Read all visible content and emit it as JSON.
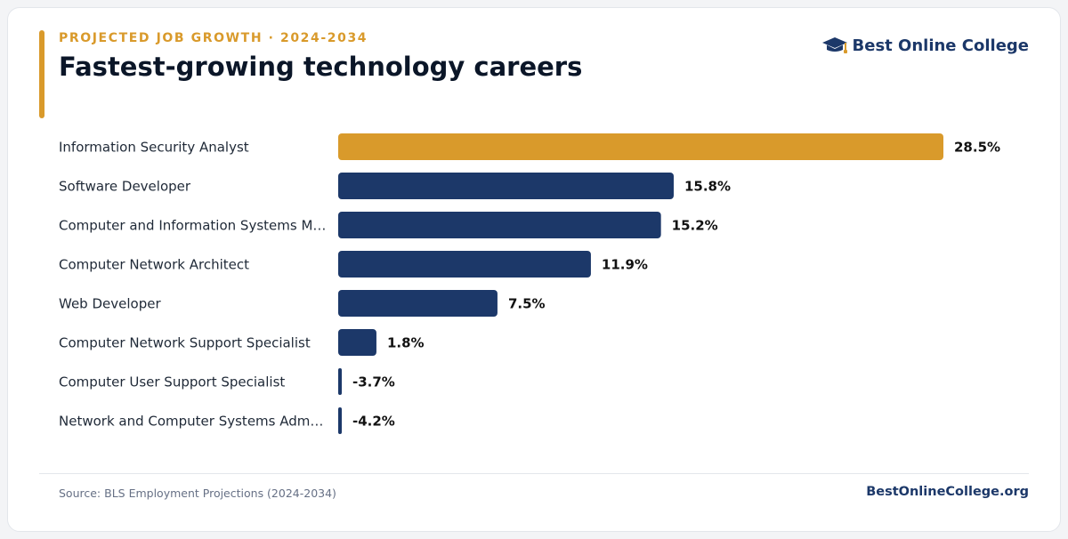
{
  "header": {
    "kicker": "PROJECTED JOB GROWTH · 2024-2034",
    "title": "Fastest-growing technology careers"
  },
  "brand": {
    "name": "Best Online College",
    "icon": "graduation-cap-icon"
  },
  "footer": {
    "source": "Source: BLS Employment Projections (2024-2034)",
    "site": "BestOnlineCollege.org"
  },
  "colors": {
    "highlight": "#d99a2b",
    "bar": "#1c3869",
    "label": "#1f2937",
    "value": "#111111"
  },
  "chart_data": {
    "type": "bar",
    "orientation": "horizontal",
    "title": "Fastest-growing technology careers",
    "xlabel": "",
    "ylabel": "",
    "unit": "%",
    "grid": false,
    "legend": "none",
    "categories": [
      "Information Security Analyst",
      "Software Developer",
      "Computer and Information Systems M…",
      "Computer Network Architect",
      "Web Developer",
      "Computer Network Support Specialist",
      "Computer User Support Specialist",
      "Network and Computer Systems Adm…"
    ],
    "values": [
      28.5,
      15.8,
      15.2,
      11.9,
      7.5,
      1.8,
      -3.7,
      -4.2
    ],
    "value_labels": [
      "28.5%",
      "15.8%",
      "15.2%",
      "11.9%",
      "7.5%",
      "1.8%",
      "-3.7%",
      "-4.2%"
    ],
    "highlight_index": 0,
    "xlim": [
      0,
      28.5
    ]
  }
}
